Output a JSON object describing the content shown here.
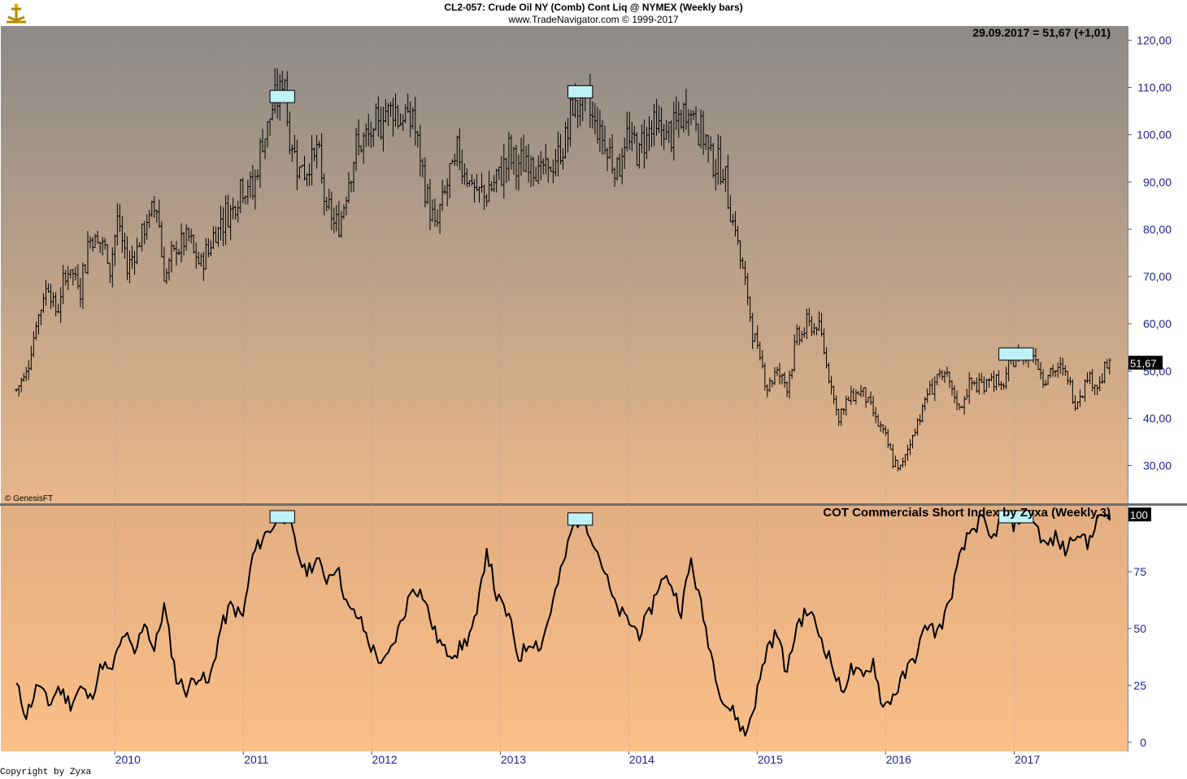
{
  "header": {
    "title": "CL2-057:  Crude Oil NY (Comb) Cont Liq @ NYMEX  (Weekly bars)",
    "subtitle": "www.TradeNavigator.com © 1999-2017"
  },
  "colors": {
    "price_bg_top": "#8c8a87",
    "price_bg_bottom": "#e9b78a",
    "cot_bg_top": "#e2ae82",
    "cot_bg_bottom": "#fbbf88",
    "axis_text": "#1f1f8f",
    "marker_fill": "#bff2f7",
    "marker_stroke": "#000000",
    "series": "#000000"
  },
  "chart_data": [
    {
      "type": "bar",
      "panel": "price",
      "series_name": "Crude Oil NY weekly OHLC bars",
      "info_label": "29.09.2017 = 51,67 (+1,01)",
      "last_value_label": "51,67",
      "watermark": "© GenesisFT",
      "ylim": [
        22,
        123
      ],
      "y_ticks": [
        {
          "value": 120,
          "label": "120,00"
        },
        {
          "value": 110,
          "label": "110,00"
        },
        {
          "value": 100,
          "label": "100,00"
        },
        {
          "value": 90,
          "label": "90,00"
        },
        {
          "value": 80,
          "label": "80,00"
        },
        {
          "value": 70,
          "label": "70,00"
        },
        {
          "value": 60,
          "label": "60,00"
        },
        {
          "value": 50,
          "label": "50,00"
        },
        {
          "value": 40,
          "label": "40,00"
        },
        {
          "value": 30,
          "label": "30,00"
        }
      ],
      "price_path": [
        [
          "2009-03-27",
          46
        ],
        [
          "2009-04-24",
          50
        ],
        [
          "2009-05-29",
          62
        ],
        [
          "2009-06-26",
          69
        ],
        [
          "2009-07-17",
          62
        ],
        [
          "2009-08-21",
          72
        ],
        [
          "2009-09-25",
          68
        ],
        [
          "2009-10-23",
          79
        ],
        [
          "2009-11-27",
          77
        ],
        [
          "2009-12-18",
          72
        ],
        [
          "2010-01-08",
          82
        ],
        [
          "2010-02-05",
          72
        ],
        [
          "2010-03-26",
          80
        ],
        [
          "2010-04-30",
          86
        ],
        [
          "2010-05-21",
          70
        ],
        [
          "2010-06-25",
          76
        ],
        [
          "2010-07-30",
          78
        ],
        [
          "2010-08-27",
          72
        ],
        [
          "2010-09-24",
          76
        ],
        [
          "2010-10-29",
          82
        ],
        [
          "2010-11-26",
          84
        ],
        [
          "2010-12-31",
          90
        ],
        [
          "2011-01-28",
          88
        ],
        [
          "2011-02-25",
          99
        ],
        [
          "2011-03-25",
          105
        ],
        [
          "2011-04-29",
          112
        ],
        [
          "2011-05-13",
          98
        ],
        [
          "2011-06-24",
          92
        ],
        [
          "2011-07-29",
          97
        ],
        [
          "2011-08-26",
          84
        ],
        [
          "2011-09-30",
          80
        ],
        [
          "2011-10-28",
          92
        ],
        [
          "2011-11-25",
          98
        ],
        [
          "2011-12-30",
          99
        ],
        [
          "2012-02-24",
          107
        ],
        [
          "2012-03-30",
          103
        ],
        [
          "2012-04-27",
          104
        ],
        [
          "2012-05-25",
          91
        ],
        [
          "2012-06-29",
          80
        ],
        [
          "2012-07-27",
          88
        ],
        [
          "2012-08-31",
          96
        ],
        [
          "2012-09-28",
          92
        ],
        [
          "2012-10-26",
          87
        ],
        [
          "2012-11-30",
          88
        ],
        [
          "2012-12-28",
          91
        ],
        [
          "2013-01-25",
          96
        ],
        [
          "2013-02-22",
          93
        ],
        [
          "2013-03-29",
          95
        ],
        [
          "2013-04-26",
          92
        ],
        [
          "2013-05-31",
          93
        ],
        [
          "2013-06-28",
          97
        ],
        [
          "2013-07-26",
          106
        ],
        [
          "2013-08-30",
          107
        ],
        [
          "2013-09-27",
          103
        ],
        [
          "2013-10-25",
          98
        ],
        [
          "2013-11-29",
          93
        ],
        [
          "2013-12-27",
          99
        ],
        [
          "2014-01-31",
          97
        ],
        [
          "2014-02-28",
          102
        ],
        [
          "2014-03-28",
          101
        ],
        [
          "2014-04-25",
          100
        ],
        [
          "2014-05-30",
          103
        ],
        [
          "2014-06-20",
          106
        ],
        [
          "2014-07-25",
          101
        ],
        [
          "2014-08-29",
          95
        ],
        [
          "2014-09-26",
          92
        ],
        [
          "2014-10-31",
          80
        ],
        [
          "2014-11-28",
          68
        ],
        [
          "2014-12-26",
          56
        ],
        [
          "2015-01-30",
          47
        ],
        [
          "2015-02-27",
          50
        ],
        [
          "2015-03-27",
          47
        ],
        [
          "2015-04-24",
          57
        ],
        [
          "2015-05-29",
          60
        ],
        [
          "2015-06-26",
          59
        ],
        [
          "2015-07-31",
          47
        ],
        [
          "2015-08-21",
          40
        ],
        [
          "2015-09-25",
          45
        ],
        [
          "2015-10-30",
          46
        ],
        [
          "2015-11-27",
          41
        ],
        [
          "2015-12-25",
          37
        ],
        [
          "2016-01-22",
          31
        ],
        [
          "2016-02-12",
          29
        ],
        [
          "2016-03-25",
          38
        ],
        [
          "2016-04-29",
          45
        ],
        [
          "2016-05-27",
          49
        ],
        [
          "2016-06-24",
          48
        ],
        [
          "2016-07-29",
          42
        ],
        [
          "2016-08-26",
          47
        ],
        [
          "2016-09-30",
          47
        ],
        [
          "2016-10-28",
          49
        ],
        [
          "2016-11-25",
          46
        ],
        [
          "2016-12-30",
          53
        ],
        [
          "2017-01-27",
          53
        ],
        [
          "2017-02-24",
          54
        ],
        [
          "2017-03-24",
          49
        ],
        [
          "2017-04-28",
          50
        ],
        [
          "2017-05-26",
          50
        ],
        [
          "2017-06-23",
          43
        ],
        [
          "2017-07-28",
          49
        ],
        [
          "2017-08-25",
          47
        ],
        [
          "2017-09-29",
          51.67
        ]
      ],
      "highlight_zones": [
        {
          "start": "2011-03-18",
          "end": "2011-05-27",
          "value": 108
        },
        {
          "start": "2013-07-12",
          "end": "2013-09-20",
          "value": 109
        },
        {
          "start": "2016-11-18",
          "end": "2017-02-24",
          "value": 53.5
        }
      ]
    },
    {
      "type": "line",
      "panel": "indicator",
      "title": "COT Commercials Short Index by Zyxa (Weekly,3)",
      "last_value_label": "100",
      "ylim": [
        -4,
        104
      ],
      "y_ticks": [
        {
          "value": 100,
          "label": "100"
        },
        {
          "value": 75,
          "label": "75"
        },
        {
          "value": 50,
          "label": "50"
        },
        {
          "value": 25,
          "label": "25"
        },
        {
          "value": 0,
          "label": "0"
        }
      ],
      "series": [
        {
          "name": "COT Commercials Short Index",
          "points": [
            [
              "2009-03-27",
              25
            ],
            [
              "2009-04-24",
              12
            ],
            [
              "2009-05-29",
              26
            ],
            [
              "2009-06-26",
              16
            ],
            [
              "2009-07-24",
              24
            ],
            [
              "2009-08-28",
              17
            ],
            [
              "2009-09-25",
              24
            ],
            [
              "2009-10-23",
              19
            ],
            [
              "2009-11-27",
              35
            ],
            [
              "2009-12-18",
              30
            ],
            [
              "2010-01-29",
              48
            ],
            [
              "2010-02-26",
              38
            ],
            [
              "2010-03-26",
              54
            ],
            [
              "2010-04-23",
              40
            ],
            [
              "2010-05-21",
              60
            ],
            [
              "2010-06-25",
              28
            ],
            [
              "2010-07-23",
              23
            ],
            [
              "2010-08-27",
              30
            ],
            [
              "2010-09-24",
              25
            ],
            [
              "2010-10-29",
              50
            ],
            [
              "2010-11-26",
              60
            ],
            [
              "2010-12-31",
              55
            ],
            [
              "2011-01-28",
              82
            ],
            [
              "2011-02-25",
              90
            ],
            [
              "2011-03-25",
              95
            ],
            [
              "2011-04-22",
              100
            ],
            [
              "2011-05-13",
              97
            ],
            [
              "2011-05-27",
              88
            ],
            [
              "2011-06-24",
              75
            ],
            [
              "2011-07-29",
              80
            ],
            [
              "2011-08-26",
              72
            ],
            [
              "2011-09-23",
              78
            ],
            [
              "2011-10-28",
              58
            ],
            [
              "2011-11-25",
              55
            ],
            [
              "2011-12-30",
              42
            ],
            [
              "2012-02-03",
              34
            ],
            [
              "2012-02-24",
              40
            ],
            [
              "2012-03-30",
              55
            ],
            [
              "2012-04-27",
              69
            ],
            [
              "2012-05-25",
              65
            ],
            [
              "2012-06-29",
              48
            ],
            [
              "2012-07-27",
              40
            ],
            [
              "2012-08-31",
              40
            ],
            [
              "2012-09-28",
              45
            ],
            [
              "2012-10-26",
              55
            ],
            [
              "2012-11-23",
              86
            ],
            [
              "2012-12-21",
              64
            ],
            [
              "2013-01-25",
              55
            ],
            [
              "2013-02-22",
              37
            ],
            [
              "2013-03-29",
              45
            ],
            [
              "2013-04-26",
              42
            ],
            [
              "2013-05-31",
              62
            ],
            [
              "2013-06-28",
              78
            ],
            [
              "2013-07-26",
              95
            ],
            [
              "2013-08-23",
              100
            ],
            [
              "2013-09-20",
              90
            ],
            [
              "2013-10-18",
              78
            ],
            [
              "2013-11-22",
              60
            ],
            [
              "2013-12-20",
              55
            ],
            [
              "2014-01-31",
              48
            ],
            [
              "2014-02-28",
              56
            ],
            [
              "2014-03-28",
              70
            ],
            [
              "2014-04-25",
              72
            ],
            [
              "2014-05-30",
              58
            ],
            [
              "2014-06-27",
              80
            ],
            [
              "2014-07-25",
              60
            ],
            [
              "2014-08-29",
              35
            ],
            [
              "2014-09-26",
              18
            ],
            [
              "2014-10-31",
              12
            ],
            [
              "2014-11-28",
              3
            ],
            [
              "2014-12-26",
              18
            ],
            [
              "2015-01-30",
              42
            ],
            [
              "2015-02-27",
              48
            ],
            [
              "2015-03-27",
              30
            ],
            [
              "2015-04-24",
              52
            ],
            [
              "2015-05-29",
              58
            ],
            [
              "2015-06-26",
              48
            ],
            [
              "2015-07-31",
              35
            ],
            [
              "2015-08-28",
              22
            ],
            [
              "2015-09-25",
              32
            ],
            [
              "2015-10-30",
              28
            ],
            [
              "2015-11-27",
              36
            ],
            [
              "2015-12-25",
              15
            ],
            [
              "2016-01-29",
              22
            ],
            [
              "2016-02-26",
              30
            ],
            [
              "2016-03-25",
              38
            ],
            [
              "2016-04-29",
              52
            ],
            [
              "2016-05-27",
              48
            ],
            [
              "2016-06-24",
              58
            ],
            [
              "2016-07-29",
              80
            ],
            [
              "2016-08-26",
              92
            ],
            [
              "2016-09-30",
              98
            ],
            [
              "2016-10-28",
              88
            ],
            [
              "2016-11-25",
              99
            ],
            [
              "2016-12-30",
              96
            ],
            [
              "2017-01-27",
              100
            ],
            [
              "2017-02-24",
              98
            ],
            [
              "2017-03-31",
              86
            ],
            [
              "2017-04-28",
              90
            ],
            [
              "2017-05-26",
              84
            ],
            [
              "2017-06-30",
              94
            ],
            [
              "2017-07-28",
              86
            ],
            [
              "2017-08-25",
              100
            ],
            [
              "2017-09-29",
              100
            ]
          ]
        }
      ],
      "highlight_zones": [
        {
          "start": "2011-03-18",
          "end": "2011-05-27",
          "value": 99
        },
        {
          "start": "2013-07-12",
          "end": "2013-09-20",
          "value": 98
        },
        {
          "start": "2016-11-18",
          "end": "2017-02-24",
          "value": 99
        }
      ]
    }
  ],
  "x_axis": {
    "range": [
      "2009-02-13",
      "2017-11-17"
    ],
    "year_labels": [
      {
        "date": "2010-01-01",
        "label": "2010"
      },
      {
        "date": "2011-01-01",
        "label": "2011"
      },
      {
        "date": "2012-01-01",
        "label": "2012"
      },
      {
        "date": "2013-01-01",
        "label": "2013"
      },
      {
        "date": "2014-01-01",
        "label": "2014"
      },
      {
        "date": "2015-01-01",
        "label": "2015"
      },
      {
        "date": "2016-01-01",
        "label": "2016"
      },
      {
        "date": "2017-01-01",
        "label": "2017"
      }
    ],
    "grid": "dotted"
  },
  "footer": {
    "copyright": "Copyright by Zyxa"
  }
}
